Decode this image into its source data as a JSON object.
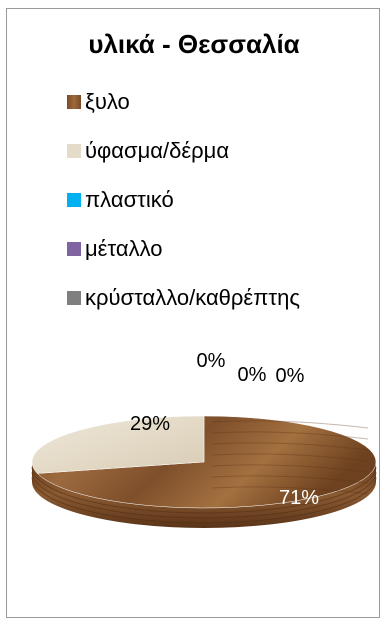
{
  "chart_data": {
    "type": "pie",
    "title": "υλικά - Θεσσαλία",
    "categories": [
      "ξυλο",
      "ύφασμα/δέρμα",
      "πλαστικό",
      "μέταλλο",
      "κρύσταλλο/καθρέπτης"
    ],
    "values": [
      71,
      29,
      0,
      0,
      0
    ],
    "labels": [
      "71%",
      "29%",
      "0%",
      "0%",
      "0%"
    ],
    "colors": [
      "#8a5a32",
      "#e4dbc8",
      "#00b0f0",
      "#8064a2",
      "#7f7f7f"
    ],
    "legend_position": "top"
  }
}
